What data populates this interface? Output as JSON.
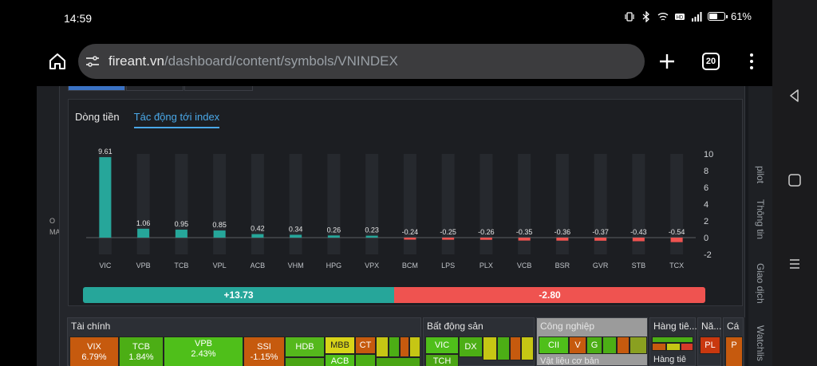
{
  "status_bar": {
    "time": "14:59",
    "battery": "61%",
    "icons": [
      "vibrate-icon",
      "bluetooth-icon",
      "wifi-icon",
      "hd-icon",
      "signal-icon",
      "battery-icon"
    ]
  },
  "browser": {
    "url_host": "fireant.vn",
    "url_path": "/dashboard/content/symbols/VNINDEX",
    "tab_count": "20"
  },
  "side_labels": {
    "left": [
      "O",
      "MA"
    ]
  },
  "right_rail": [
    "Watchlis",
    "Giao dịch",
    "Thông tin",
    "pilot"
  ],
  "chart_tabs": {
    "tab1": "Dòng tiền",
    "tab2": "Tác động tới index"
  },
  "chart_data": {
    "type": "bar",
    "categories": [
      "VIC",
      "VPB",
      "TCB",
      "VPL",
      "ACB",
      "VHM",
      "HPG",
      "VPX",
      "BCM",
      "LPS",
      "PLX",
      "VCB",
      "BSR",
      "GVR",
      "STB",
      "TCX"
    ],
    "values": [
      9.61,
      1.06,
      0.95,
      0.85,
      0.42,
      0.34,
      0.26,
      0.23,
      -0.24,
      -0.25,
      -0.26,
      -0.35,
      -0.36,
      -0.37,
      -0.43,
      -0.54
    ],
    "value_labels": [
      "9.61",
      "1.06",
      "0.95",
      "0.85",
      "0.42",
      "0.34",
      "0.26",
      "0.23",
      "-0.24",
      "-0.25",
      "-0.26",
      "-0.35",
      "-0.36",
      "-0.37",
      "-0.43",
      "-0.54"
    ],
    "y_ticks": [
      "10",
      "8",
      "6",
      "4",
      "2",
      "0",
      "-2"
    ],
    "ylim": [
      -2,
      10
    ],
    "positive_color": "#26a69a",
    "negative_color": "#ef5350",
    "total_positive": "+13.73",
    "total_negative": "-2.80",
    "total_positive_value": 13.73,
    "total_negative_value": -2.8
  },
  "heatmap": {
    "sectors": [
      {
        "title": "Tài chính",
        "cells": [
          {
            "label": "VIX",
            "sub": "6.79%"
          },
          {
            "label": "TCB",
            "sub": "1.84%"
          },
          {
            "label": "VPB",
            "sub": "2.43%"
          },
          {
            "label": "SSI",
            "sub": "-1.15%"
          },
          {
            "label": "HDB"
          },
          {
            "label": "MBB"
          },
          {
            "label": "CT"
          },
          {
            "label": "ACB"
          }
        ]
      },
      {
        "title": "Bất động sản",
        "cells": [
          {
            "label": "VIC"
          },
          {
            "label": "DX"
          },
          {
            "label": "TCH"
          }
        ]
      },
      {
        "title": "Công nghiệp",
        "cells": [
          {
            "label": "CII"
          },
          {
            "label": "V"
          },
          {
            "label": "G"
          }
        ]
      },
      {
        "title": "Hàng tiê...",
        "cells": []
      },
      {
        "title": "Nă...",
        "cells": [
          {
            "label": "PL"
          }
        ]
      },
      {
        "title": "Cá",
        "cells": [
          {
            "label": "P"
          }
        ]
      }
    ],
    "sub_titles": [
      "Vật liệu cơ bản",
      "Hàng tiê"
    ]
  }
}
